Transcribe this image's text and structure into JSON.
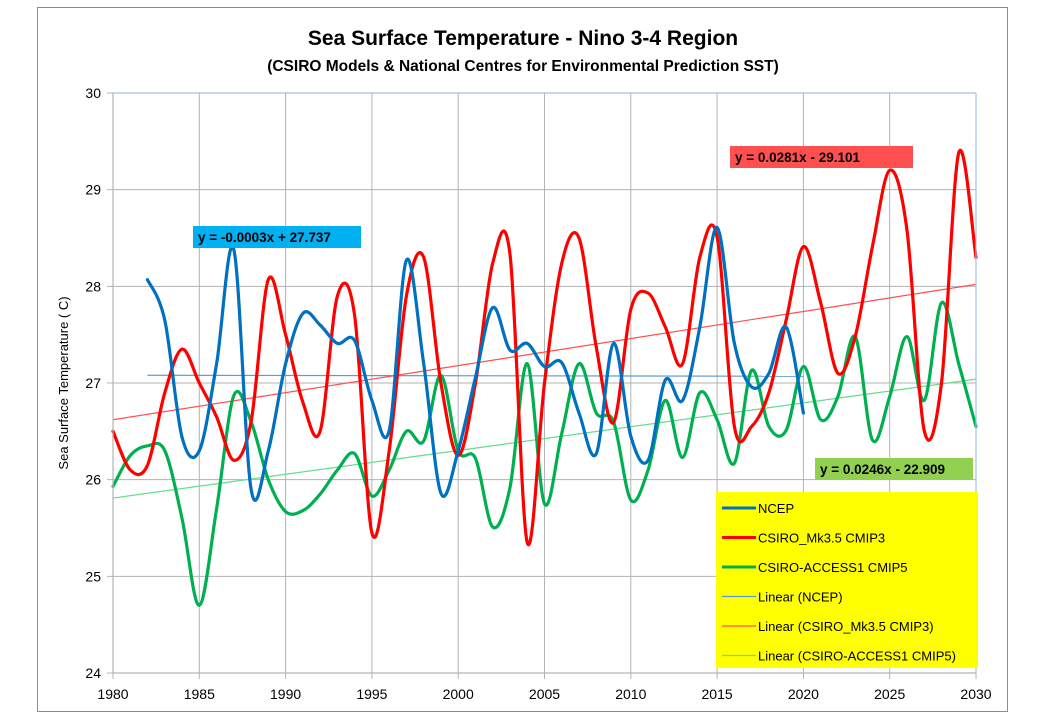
{
  "chart_data": {
    "type": "line",
    "title": "Sea Surface Temperature - Nino 3-4 Region",
    "subtitle": "(CSIRO Models & National Centres for Environmental Prediction SST)",
    "xlabel": "",
    "ylabel": "Sea Surface Temperature ( C)",
    "xlim": [
      1980,
      2030
    ],
    "ylim": [
      24,
      30
    ],
    "x_ticks": [
      "1980",
      "1985",
      "1990",
      "1995",
      "2000",
      "2005",
      "2010",
      "2015",
      "2020",
      "2025",
      "2030"
    ],
    "y_ticks": [
      "24",
      "25",
      "26",
      "27",
      "28",
      "29",
      "30"
    ],
    "grid": true,
    "legend_position": "bottom-right",
    "series": [
      {
        "name": "NCEP",
        "color": "#0070c0",
        "smooth": true,
        "x": [
          1982,
          1983,
          1984,
          1985,
          1986,
          1987,
          1988,
          1989,
          1990,
          1991,
          1992,
          1993,
          1994,
          1995,
          1996,
          1997,
          1998,
          1999,
          2000,
          2001,
          2002,
          2003,
          2004,
          2005,
          2006,
          2007,
          2008,
          2009,
          2010,
          2011,
          2012,
          2013,
          2014,
          2015,
          2016,
          2017,
          2018,
          2019,
          2020
        ],
        "values": [
          28.07,
          27.65,
          26.44,
          26.3,
          27.2,
          28.38,
          25.9,
          26.3,
          27.2,
          27.72,
          27.6,
          27.41,
          27.44,
          26.82,
          26.51,
          28.27,
          27.2,
          25.86,
          26.3,
          27.06,
          27.78,
          27.34,
          27.41,
          27.17,
          27.21,
          26.69,
          26.27,
          27.41,
          26.45,
          26.2,
          27.03,
          26.82,
          27.58,
          28.61,
          27.41,
          26.96,
          27.1,
          27.58,
          26.69
        ]
      },
      {
        "name": "CSIRO_Mk3.5 CMIP3",
        "color": "#ff0000",
        "smooth": true,
        "x": [
          1980,
          1981,
          1982,
          1983,
          1984,
          1985,
          1986,
          1987,
          1988,
          1989,
          1990,
          1991,
          1992,
          1993,
          1994,
          1995,
          1996,
          1997,
          1998,
          1999,
          2000,
          2001,
          2002,
          2003,
          2004,
          2005,
          2006,
          2007,
          2008,
          2009,
          2010,
          2011,
          2012,
          2013,
          2014,
          2015,
          2016,
          2017,
          2018,
          2019,
          2020,
          2021,
          2022,
          2023,
          2024,
          2025,
          2026,
          2027,
          2028,
          2029,
          2030
        ],
        "values": [
          26.5,
          26.1,
          26.15,
          26.9,
          27.35,
          27.0,
          26.65,
          26.2,
          26.6,
          28.07,
          27.5,
          26.8,
          26.5,
          27.9,
          27.7,
          25.45,
          26.3,
          27.9,
          28.3,
          27.0,
          26.25,
          27.0,
          28.24,
          28.33,
          25.35,
          27.0,
          28.24,
          28.5,
          27.37,
          26.59,
          27.76,
          27.93,
          27.58,
          27.2,
          28.3,
          28.51,
          26.55,
          26.55,
          26.9,
          27.65,
          28.41,
          27.83,
          27.1,
          27.48,
          28.41,
          29.2,
          28.58,
          26.51,
          27.0,
          29.38,
          28.3
        ]
      },
      {
        "name": "CSIRO-ACCESS1 CMIP5",
        "color": "#00b050",
        "smooth": true,
        "x": [
          1980,
          1981,
          1982,
          1983,
          1984,
          1985,
          1986,
          1987,
          1988,
          1989,
          1990,
          1991,
          1992,
          1993,
          1994,
          1995,
          1996,
          1997,
          1998,
          1999,
          2000,
          2001,
          2002,
          2003,
          2004,
          2005,
          2006,
          2007,
          2008,
          2009,
          2010,
          2011,
          2012,
          2013,
          2014,
          2015,
          2016,
          2017,
          2018,
          2019,
          2020,
          2021,
          2022,
          2023,
          2024,
          2025,
          2026,
          2027,
          2028,
          2029,
          2030
        ],
        "values": [
          25.93,
          26.25,
          26.35,
          26.3,
          25.6,
          24.7,
          25.7,
          26.87,
          26.6,
          26.0,
          25.67,
          25.68,
          25.85,
          26.1,
          26.27,
          25.83,
          26.1,
          26.5,
          26.4,
          27.08,
          26.3,
          26.22,
          25.51,
          25.92,
          27.2,
          25.75,
          26.48,
          27.2,
          26.69,
          26.6,
          25.79,
          26.1,
          26.82,
          26.23,
          26.9,
          26.62,
          26.17,
          27.13,
          26.55,
          26.51,
          27.17,
          26.62,
          26.86,
          27.48,
          26.41,
          26.86,
          27.48,
          26.82,
          27.83,
          27.2,
          26.55
        ]
      }
    ],
    "trendlines": [
      {
        "name": "Linear (NCEP)",
        "color": "#5b9bd5",
        "x": [
          1982,
          2020
        ],
        "values": [
          27.08,
          27.07
        ],
        "equation": "y = -0.0003x + 27.737",
        "label_bg": "#00b0f0"
      },
      {
        "name": "Linear (CSIRO_Mk3.5 CMIP3)",
        "color": "#ff5050",
        "x": [
          1980,
          2030
        ],
        "values": [
          26.62,
          28.02
        ],
        "equation": "y = 0.0281x - 29.101",
        "label_bg": "#ff5050"
      },
      {
        "name": "Linear (CSIRO-ACCESS1 CMIP5)",
        "color": "#66dd88",
        "x": [
          1980,
          2030
        ],
        "values": [
          25.81,
          27.04
        ],
        "equation": "y = 0.0246x - 22.909",
        "label_bg": "#92d050"
      }
    ],
    "legend": {
      "background": "#ffff00",
      "entries": [
        {
          "label": "NCEP",
          "color": "#0070c0",
          "style": "thick"
        },
        {
          "label": "CSIRO_Mk3.5 CMIP3",
          "color": "#ff0000",
          "style": "thick"
        },
        {
          "label": "CSIRO-ACCESS1 CMIP5",
          "color": "#00b050",
          "style": "thick"
        },
        {
          "label": "Linear (NCEP)",
          "color": "#5b9bd5",
          "style": "thin"
        },
        {
          "label": "Linear (CSIRO_Mk3.5 CMIP3)",
          "color": "#ff5050",
          "style": "thin"
        },
        {
          "label": "Linear (CSIRO-ACCESS1 CMIP5)",
          "color": "#66dd88",
          "style": "thin"
        }
      ]
    }
  }
}
